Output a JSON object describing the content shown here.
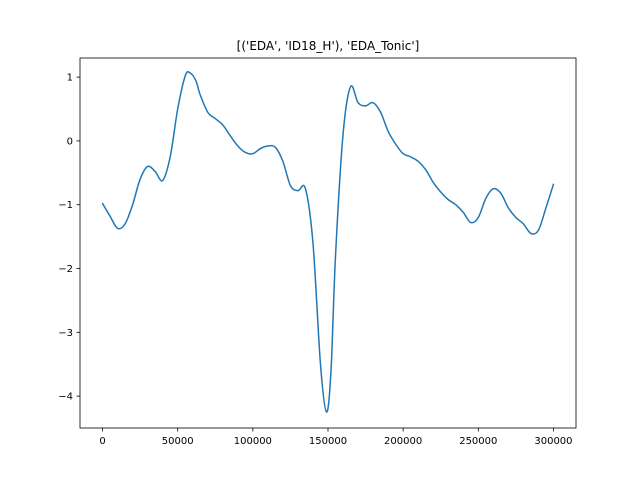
{
  "chart_data": {
    "type": "line",
    "title": "[('EDA', 'ID18_H'), 'EDA_Tonic']",
    "xlabel": "",
    "ylabel": "",
    "xlim": [
      -15000,
      315000
    ],
    "ylim": [
      -4.5,
      1.3
    ],
    "x_ticks": [
      0,
      50000,
      100000,
      150000,
      200000,
      250000,
      300000
    ],
    "x_tick_labels": [
      "0",
      "50000",
      "100000",
      "150000",
      "200000",
      "250000",
      "300000"
    ],
    "y_ticks": [
      -4,
      -3,
      -2,
      -1,
      0,
      1
    ],
    "y_tick_labels": [
      "−4",
      "−3",
      "−2",
      "−1",
      "0",
      "1"
    ],
    "grid": false,
    "legend": false,
    "series": [
      {
        "color": "#1f77b4",
        "points": [
          [
            0,
            -0.98
          ],
          [
            5000,
            -1.18
          ],
          [
            10000,
            -1.37
          ],
          [
            15000,
            -1.3
          ],
          [
            20000,
            -1.0
          ],
          [
            25000,
            -0.6
          ],
          [
            30000,
            -0.4
          ],
          [
            35000,
            -0.48
          ],
          [
            40000,
            -0.62
          ],
          [
            45000,
            -0.25
          ],
          [
            50000,
            0.5
          ],
          [
            55000,
            1.02
          ],
          [
            58000,
            1.07
          ],
          [
            62000,
            0.95
          ],
          [
            65000,
            0.72
          ],
          [
            70000,
            0.45
          ],
          [
            75000,
            0.35
          ],
          [
            80000,
            0.25
          ],
          [
            85000,
            0.08
          ],
          [
            90000,
            -0.08
          ],
          [
            95000,
            -0.18
          ],
          [
            100000,
            -0.2
          ],
          [
            105000,
            -0.12
          ],
          [
            110000,
            -0.08
          ],
          [
            115000,
            -0.1
          ],
          [
            120000,
            -0.32
          ],
          [
            125000,
            -0.7
          ],
          [
            130000,
            -0.78
          ],
          [
            135000,
            -0.75
          ],
          [
            140000,
            -1.6
          ],
          [
            145000,
            -3.5
          ],
          [
            149000,
            -4.25
          ],
          [
            152000,
            -3.6
          ],
          [
            155000,
            -1.8
          ],
          [
            160000,
            0.1
          ],
          [
            165000,
            0.85
          ],
          [
            170000,
            0.6
          ],
          [
            175000,
            0.55
          ],
          [
            180000,
            0.6
          ],
          [
            185000,
            0.45
          ],
          [
            190000,
            0.15
          ],
          [
            195000,
            -0.05
          ],
          [
            200000,
            -0.2
          ],
          [
            205000,
            -0.25
          ],
          [
            210000,
            -0.32
          ],
          [
            215000,
            -0.45
          ],
          [
            220000,
            -0.65
          ],
          [
            225000,
            -0.8
          ],
          [
            230000,
            -0.92
          ],
          [
            235000,
            -1.0
          ],
          [
            240000,
            -1.12
          ],
          [
            245000,
            -1.28
          ],
          [
            250000,
            -1.2
          ],
          [
            255000,
            -0.9
          ],
          [
            260000,
            -0.75
          ],
          [
            265000,
            -0.82
          ],
          [
            270000,
            -1.05
          ],
          [
            275000,
            -1.2
          ],
          [
            280000,
            -1.3
          ],
          [
            285000,
            -1.45
          ],
          [
            290000,
            -1.4
          ],
          [
            295000,
            -1.05
          ],
          [
            300000,
            -0.68
          ]
        ]
      }
    ]
  }
}
